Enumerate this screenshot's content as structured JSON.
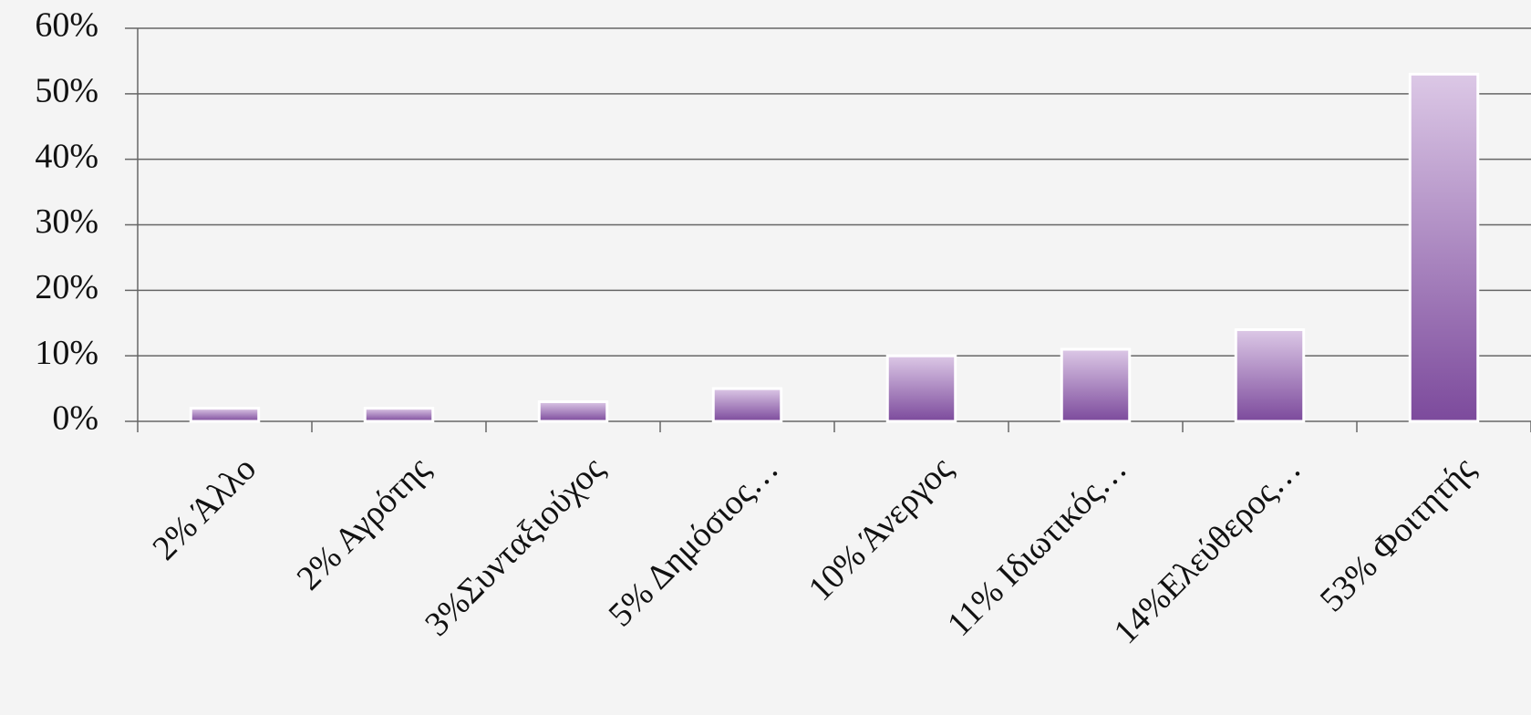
{
  "chart_data": {
    "type": "bar",
    "categories": [
      "2% Άλλο",
      "2% Αγρότης",
      "3%Συνταξιούχος",
      "5% Δημόσιος…",
      "10% Άνεργος",
      "11% Ιδιωτικός…",
      "14%Ελεύθερος…",
      "53% Φοιτητής"
    ],
    "values": [
      2,
      2,
      3,
      5,
      10,
      11,
      14,
      53
    ],
    "color": "#8a5aa8",
    "ylim": [
      0,
      60
    ],
    "yticks": [
      {
        "value": 0,
        "label": "0%"
      },
      {
        "value": 10,
        "label": "10%"
      },
      {
        "value": 20,
        "label": "20%"
      },
      {
        "value": 30,
        "label": "30%"
      },
      {
        "value": 40,
        "label": "40%"
      },
      {
        "value": 50,
        "label": "50%"
      },
      {
        "value": 60,
        "label": "60%"
      }
    ],
    "grid": true
  }
}
